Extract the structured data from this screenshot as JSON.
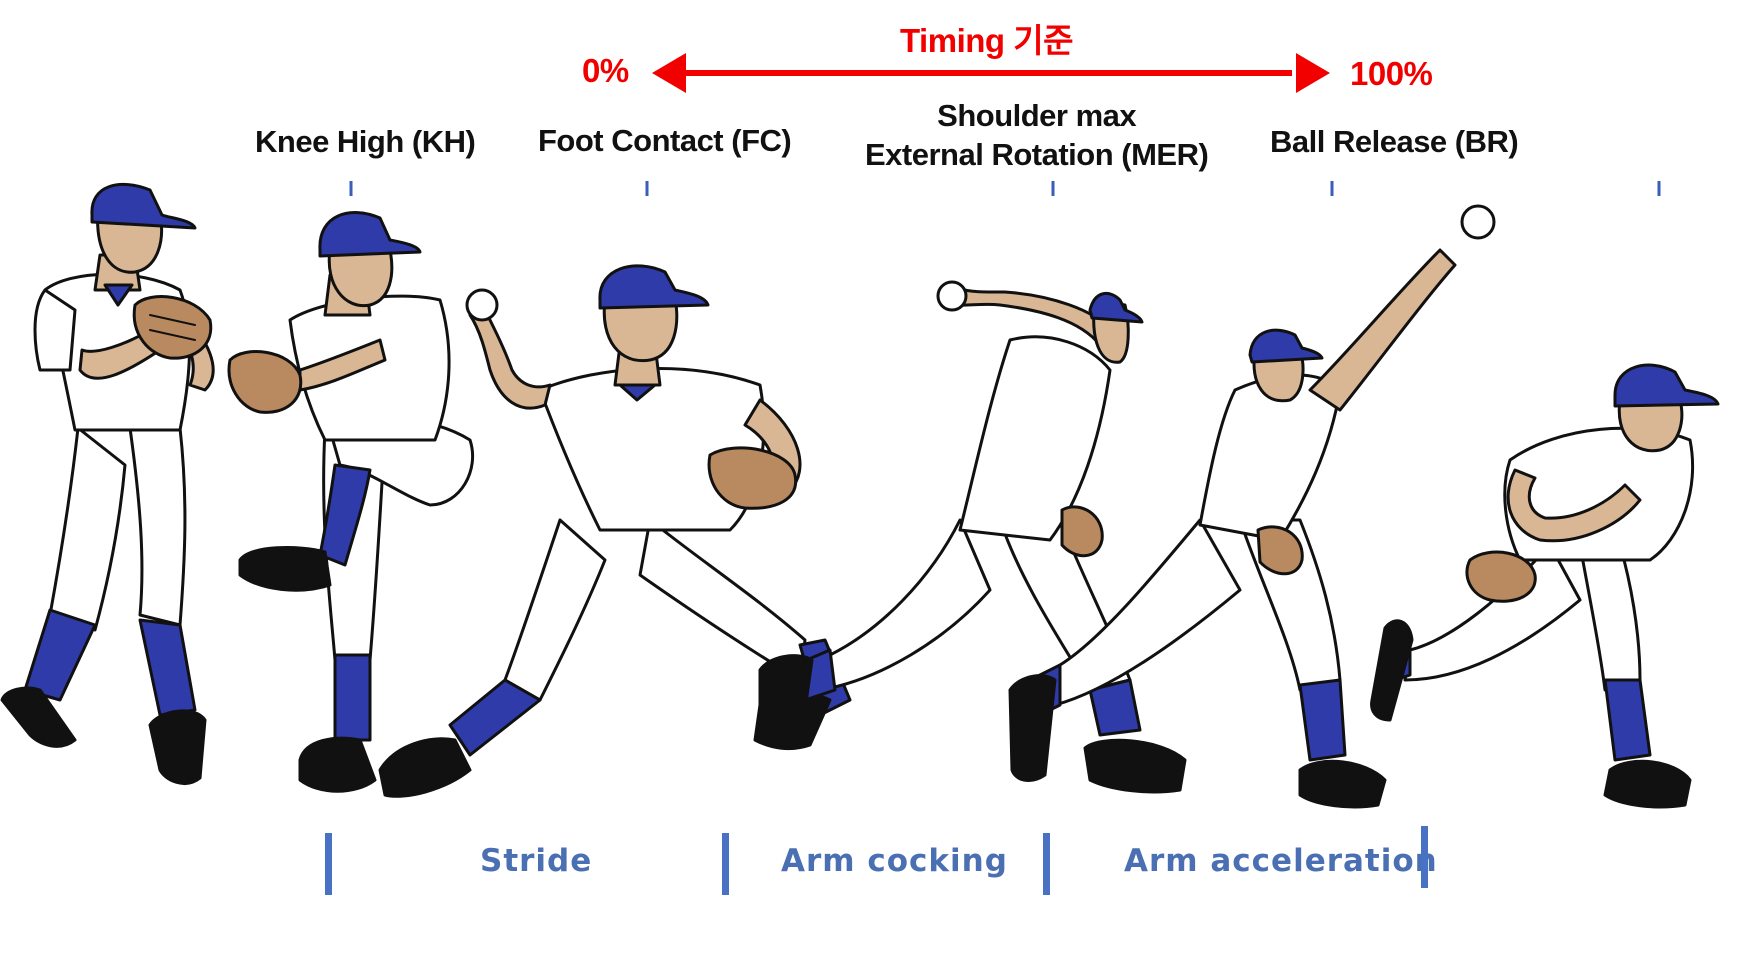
{
  "timing": {
    "title": "Timing 기준",
    "start": "0%",
    "end": "100%",
    "color": "#f20000"
  },
  "events": [
    {
      "abbr": "KH",
      "label": "Knee High (KH)"
    },
    {
      "abbr": "FC",
      "label": "Foot Contact (FC)"
    },
    {
      "abbr": "MER",
      "line1": "Shoulder max",
      "line2": "External Rotation (MER)"
    },
    {
      "abbr": "BR",
      "label": "Ball Release (BR)"
    }
  ],
  "phases": [
    "Stride",
    "Arm cocking",
    "Arm acceleration"
  ],
  "colors": {
    "cap": "#2f3ba8",
    "sock": "#2f3ba8",
    "skin": "#d9b795",
    "glove": "#b98a60",
    "uniform": "#ffffff",
    "outline": "#111111",
    "phase_text": "#4a6fb2",
    "phase_bar": "#4a72c4",
    "event_tick": "#3a5fb8"
  },
  "figures": [
    "set-position",
    "knee-high",
    "foot-contact",
    "max-external-rotation",
    "ball-release",
    "follow-through"
  ]
}
